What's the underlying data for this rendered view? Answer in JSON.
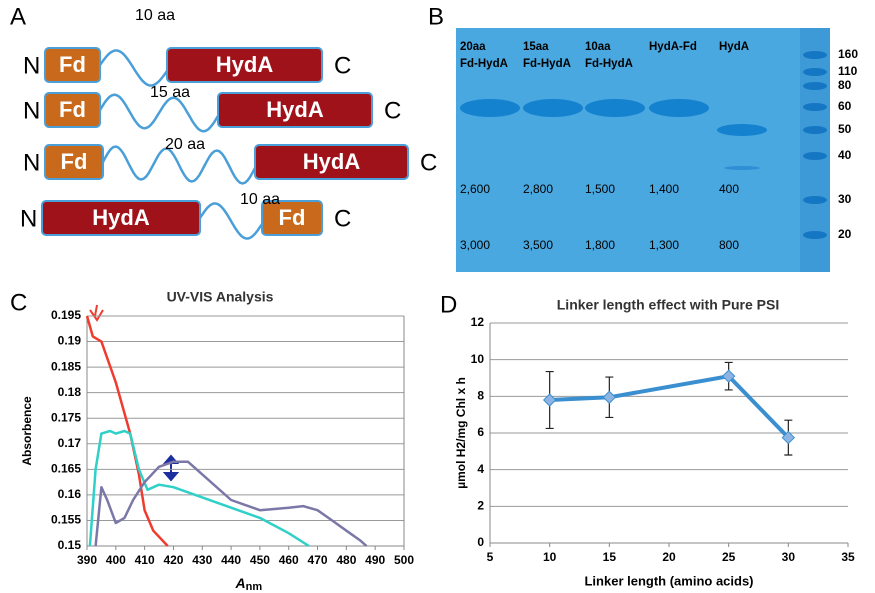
{
  "panel_labels": [
    "A",
    "B",
    "C",
    "D"
  ],
  "diagram": {
    "constructs": [
      {
        "n": "N",
        "first": "Fd",
        "linker": "10 aa",
        "second": "HydA",
        "c": "C"
      },
      {
        "n": "N",
        "first": "Fd",
        "linker": "15 aa",
        "second": "HydA",
        "c": "C"
      },
      {
        "n": "N",
        "first": "Fd",
        "linker": "20 aa",
        "second": "HydA",
        "c": "C"
      },
      {
        "n": "N",
        "first": "HydA",
        "linker": "10 aa",
        "second": "Fd",
        "c": "C"
      }
    ]
  },
  "gel": {
    "lanes": [
      {
        "label": [
          "20aa",
          "Fd-HydA"
        ],
        "numbers": [
          "2,600",
          "3,000"
        ]
      },
      {
        "label": [
          "15aa",
          "Fd-HydA"
        ],
        "numbers": [
          "2,800",
          "3,500"
        ]
      },
      {
        "label": [
          "10aa",
          "Fd-HydA"
        ],
        "numbers": [
          "1,500",
          "1,800"
        ]
      },
      {
        "label": [
          "HydA-Fd"
        ],
        "numbers": [
          "1,400",
          "1,300"
        ]
      },
      {
        "label": [
          "HydA"
        ],
        "numbers": [
          "400",
          "800"
        ]
      }
    ],
    "markers": [
      160,
      110,
      80,
      60,
      50,
      40,
      30,
      20
    ]
  },
  "chart_data": [
    {
      "type": "line",
      "title": "UV-VIS Analysis",
      "y_label": "Absorbence",
      "x_label": {
        "main": "A",
        "sub": "nm"
      },
      "xlim": [
        390,
        500
      ],
      "xticks": [
        390,
        400,
        410,
        420,
        430,
        440,
        450,
        460,
        470,
        480,
        490,
        500
      ],
      "ylim": [
        0.15,
        0.195
      ],
      "yticks": [
        0.15,
        0.155,
        0.16,
        0.165,
        0.17,
        0.175,
        0.18,
        0.185,
        0.19,
        0.195
      ],
      "grid": true,
      "series": [
        {
          "color": "#f03c2e",
          "x": [
            390,
            392,
            395,
            400,
            405,
            408,
            410,
            413,
            418
          ],
          "values": [
            0.195,
            0.191,
            0.19,
            0.182,
            0.172,
            0.164,
            0.157,
            0.153,
            0.15
          ]
        },
        {
          "color": "#2fd0c8",
          "x": [
            391,
            393,
            395,
            398,
            400,
            403,
            405,
            408,
            411,
            415,
            420,
            430,
            440,
            450,
            460,
            467
          ],
          "values": [
            0.15,
            0.165,
            0.172,
            0.1725,
            0.172,
            0.1725,
            0.172,
            0.165,
            0.161,
            0.162,
            0.1615,
            0.1595,
            0.1575,
            0.1555,
            0.1525,
            0.15
          ]
        },
        {
          "color": "#7b78a8",
          "x": [
            393,
            395,
            397,
            400,
            403,
            406,
            410,
            415,
            420,
            425,
            430,
            440,
            450,
            460,
            465,
            470,
            475,
            480,
            485,
            487
          ],
          "values": [
            0.15,
            0.1615,
            0.159,
            0.1545,
            0.1555,
            0.159,
            0.1625,
            0.1655,
            0.1665,
            0.1665,
            0.164,
            0.159,
            0.157,
            0.1575,
            0.1578,
            0.157,
            0.155,
            0.153,
            0.151,
            0.15
          ]
        }
      ]
    },
    {
      "type": "errorline",
      "title": "Linker length effect with Pure PSI",
      "y_label": "µmol H2/mg Chl x h",
      "x_label": "Linker length (amino acids)",
      "xlim": [
        5,
        35
      ],
      "xticks": [
        5,
        10,
        15,
        20,
        25,
        30,
        35
      ],
      "ylim": [
        0,
        12
      ],
      "yticks": [
        0,
        2,
        4,
        6,
        8,
        10,
        12
      ],
      "grid": true,
      "series": [
        {
          "color": "#3a8fd0",
          "marker_color": "#8db4e2",
          "x": [
            10,
            15,
            25,
            30
          ],
          "values": [
            7.8,
            7.95,
            9.1,
            5.75
          ],
          "errors": [
            1.55,
            1.1,
            0.75,
            0.95
          ]
        }
      ]
    }
  ]
}
